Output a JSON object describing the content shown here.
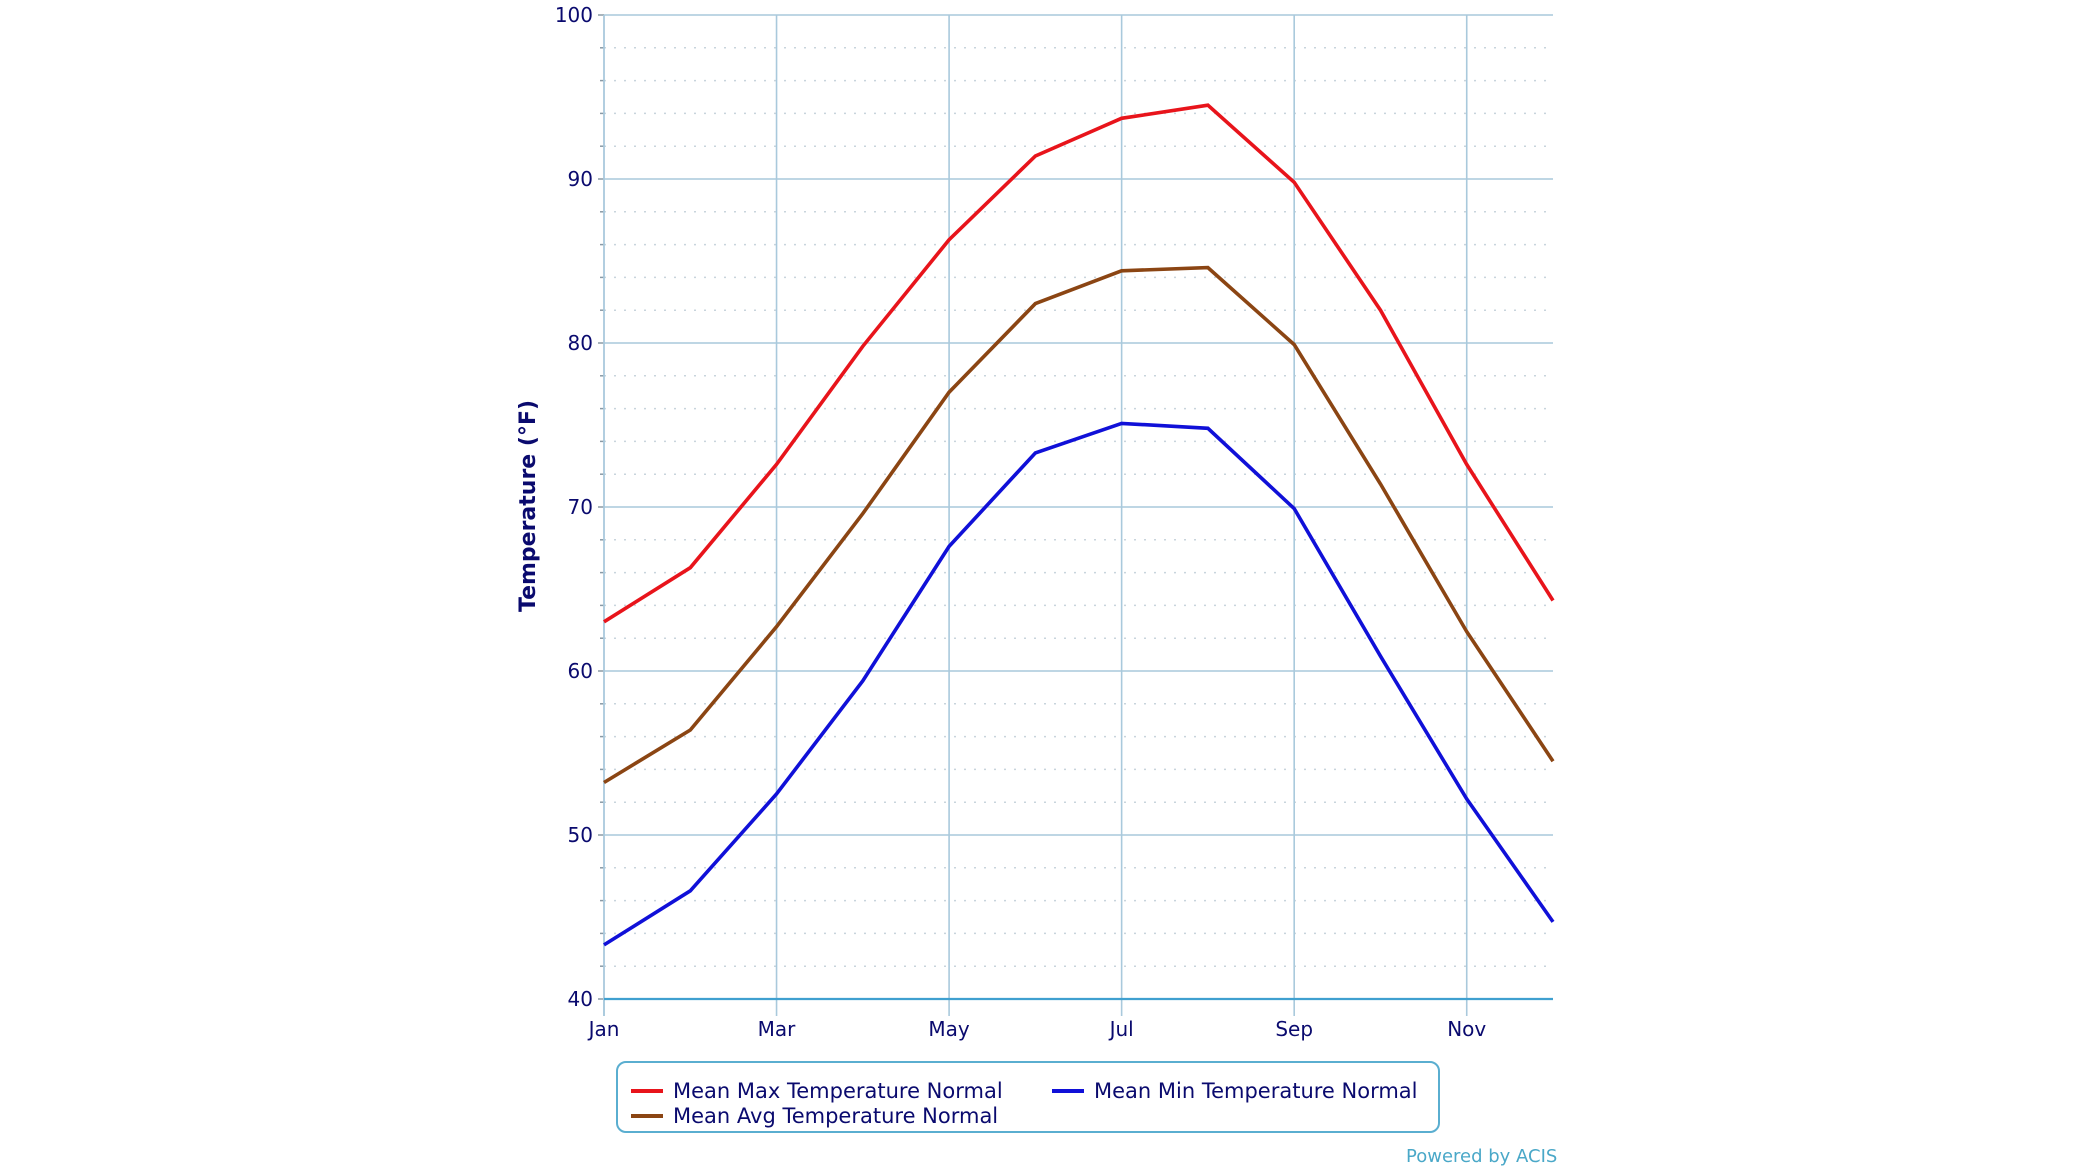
{
  "chart_data": {
    "type": "line",
    "title": "",
    "xlabel": "",
    "ylabel": "Temperature (°F)",
    "x": [
      "Jan",
      "Feb",
      "Mar",
      "Apr",
      "May",
      "Jun",
      "Jul",
      "Aug",
      "Sep",
      "Oct",
      "Nov",
      "Dec"
    ],
    "x_tick_labels": [
      "Jan",
      "Mar",
      "May",
      "Jul",
      "Sep",
      "Nov"
    ],
    "y_ticks": [
      40,
      50,
      60,
      70,
      80,
      90,
      100
    ],
    "y_minor_step": 2,
    "ylim": [
      40,
      100
    ],
    "grid": true,
    "legend_position": "bottom",
    "series": [
      {
        "name": "Mean Max Temperature Normal",
        "color": "#e8141b",
        "values": [
          63.0,
          66.3,
          72.6,
          79.8,
          86.3,
          91.4,
          93.7,
          94.5,
          89.8,
          82.0,
          72.6,
          64.3
        ]
      },
      {
        "name": "Mean Min Temperature Normal",
        "color": "#1010d8",
        "values": [
          43.3,
          46.6,
          52.5,
          59.4,
          67.6,
          73.3,
          75.1,
          74.8,
          69.9,
          60.9,
          52.2,
          44.7
        ]
      },
      {
        "name": "Mean Avg Temperature Normal",
        "color": "#8b4513",
        "values": [
          53.2,
          56.4,
          62.7,
          69.6,
          77.0,
          82.4,
          84.4,
          84.6,
          79.9,
          71.4,
          62.4,
          54.5
        ]
      }
    ]
  },
  "legend": {
    "items": [
      {
        "label": "Mean Max Temperature Normal",
        "color": "#e8141b"
      },
      {
        "label": "Mean Min Temperature Normal",
        "color": "#1010d8"
      },
      {
        "label": "Mean Avg Temperature Normal",
        "color": "#8b4513"
      }
    ]
  },
  "credit": "Powered by ACIS",
  "colors": {
    "grid": "#a9c9dc",
    "axis_line": "#3fa0d0",
    "text": "#0a0a6e",
    "credit": "#4aa8c8"
  }
}
